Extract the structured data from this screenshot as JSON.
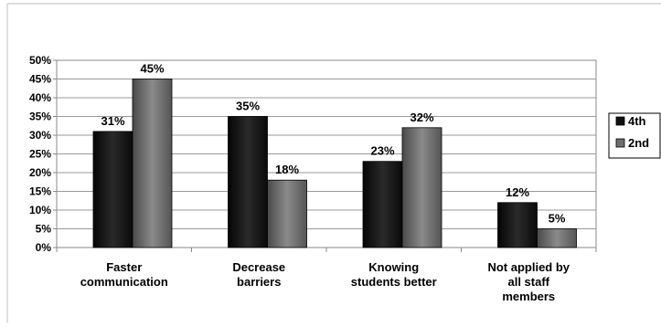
{
  "chart_data": {
    "type": "bar",
    "categories": [
      [
        "Faster",
        "communication"
      ],
      [
        "Decrease",
        "barriers"
      ],
      [
        "Knowing",
        "students better"
      ],
      [
        "Not applied by",
        "all staff",
        "members"
      ]
    ],
    "series": [
      {
        "name": "4th",
        "values": [
          31,
          35,
          23,
          12
        ],
        "labels": [
          "31%",
          "35%",
          "23%",
          "12%"
        ],
        "color": "#1c1c1c"
      },
      {
        "name": "2nd",
        "values": [
          45,
          18,
          32,
          5
        ],
        "labels": [
          "45%",
          "18%",
          "32%",
          "5%"
        ],
        "color": "#6e6e6e"
      }
    ],
    "ylim": [
      0,
      50
    ],
    "yticks": [
      "0%",
      "5%",
      "10%",
      "15%",
      "20%",
      "25%",
      "30%",
      "35%",
      "40%",
      "45%",
      "50%"
    ],
    "grid": true,
    "legend": "right",
    "title": "",
    "xlabel": "",
    "ylabel": ""
  }
}
